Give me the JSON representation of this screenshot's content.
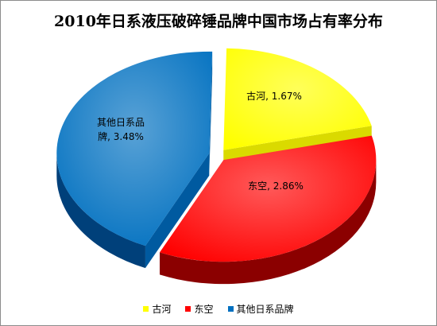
{
  "chart_data": {
    "type": "pie",
    "title": "2010年日系液压破碎锤品牌中国市场占有率分布",
    "slices": [
      {
        "name": "古河",
        "value": 1.67,
        "label": "古河, 1.67%",
        "color": "#ffff00",
        "side": "#b3b300",
        "side_light": "#dada00"
      },
      {
        "name": "东空",
        "value": 2.86,
        "label": "东空, 2.86%",
        "color": "#ff0000",
        "side": "#8b0000",
        "side_light": "#c80000"
      },
      {
        "name": "其他日系品牌",
        "value": 3.48,
        "label_lines": [
          "其他日系品",
          "牌, 3.48%"
        ],
        "color": "#0070c0",
        "side": "#00407a",
        "side_light": "#005aa0"
      }
    ],
    "legend": {
      "position": "bottom"
    }
  }
}
